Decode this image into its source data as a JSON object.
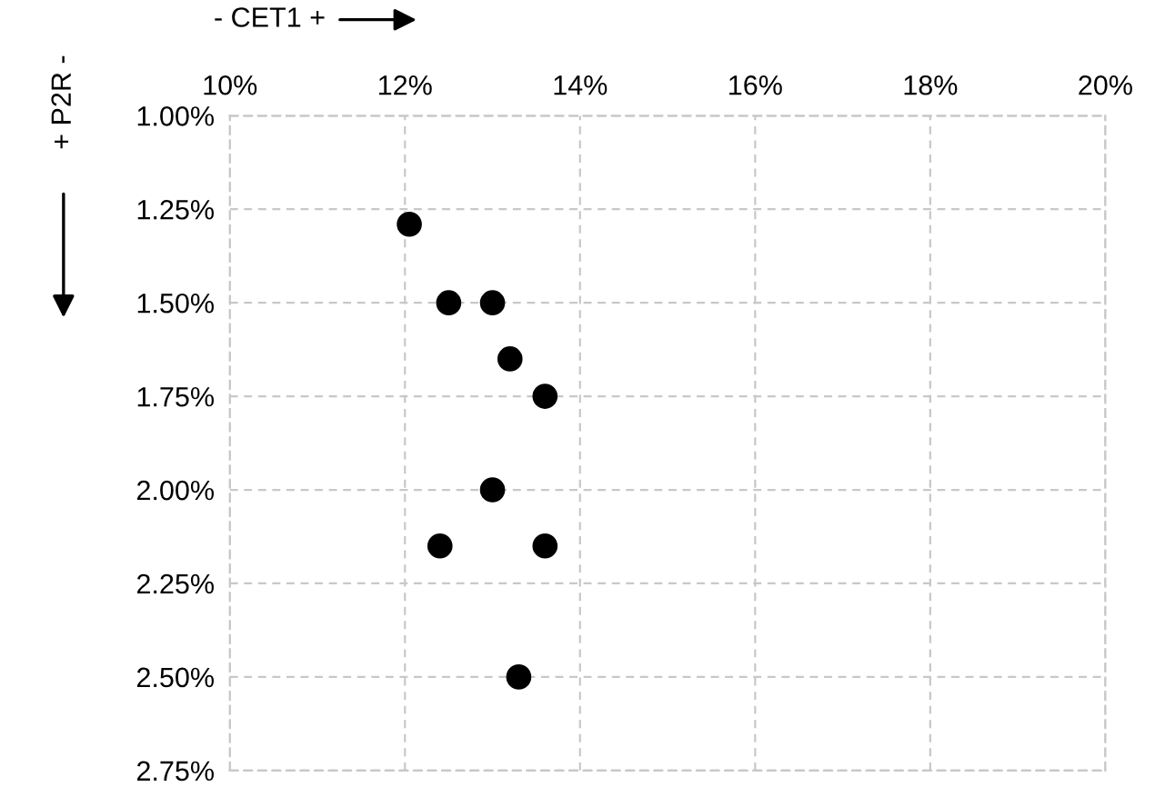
{
  "chart_data": {
    "type": "scatter",
    "xlabel": "- CET1 +",
    "ylabel": "+ P2R -",
    "x": [
      12.05,
      12.5,
      13.0,
      13.2,
      13.6,
      13.0,
      12.4,
      13.6,
      13.3
    ],
    "series": [
      {
        "color": "#000000",
        "values": [
          1.29,
          1.5,
          1.5,
          1.65,
          1.75,
          2.0,
          2.15,
          2.15,
          2.5
        ]
      }
    ],
    "xlim": [
      10,
      20
    ],
    "xticks": [
      {
        "value": 10,
        "label": "10%"
      },
      {
        "value": 12,
        "label": "12%"
      },
      {
        "value": 14,
        "label": "14%"
      },
      {
        "value": 16,
        "label": "16%"
      },
      {
        "value": 18,
        "label": "18%"
      },
      {
        "value": 20,
        "label": "20%"
      }
    ],
    "ylim": [
      2.75,
      1.0
    ],
    "yticks": [
      {
        "value": 1.0,
        "label": "1.00%"
      },
      {
        "value": 1.25,
        "label": "1.25%"
      },
      {
        "value": 1.5,
        "label": "1.50%"
      },
      {
        "value": 1.75,
        "label": "1.75%"
      },
      {
        "value": 2.0,
        "label": "2.00%"
      },
      {
        "value": 2.25,
        "label": "2.25%"
      },
      {
        "value": 2.5,
        "label": "2.50%"
      },
      {
        "value": 2.75,
        "label": "2.75%"
      }
    ],
    "grid": true,
    "marker": "circle",
    "legend": false
  }
}
